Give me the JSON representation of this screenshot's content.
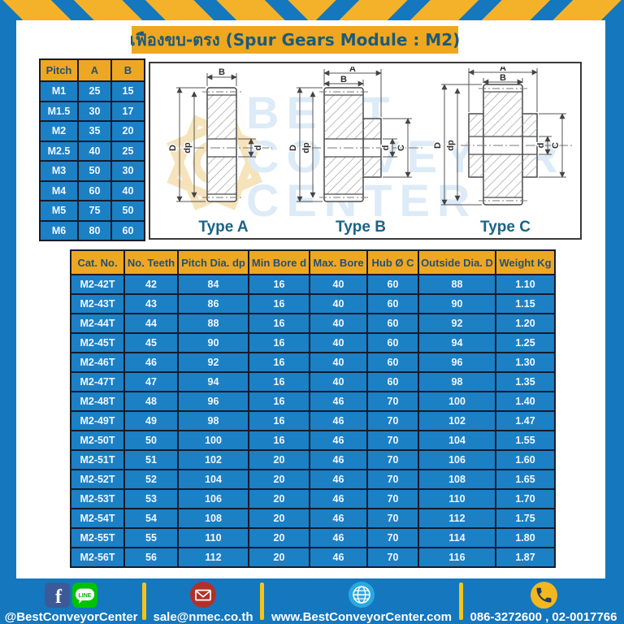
{
  "title": "เฟืองขบ-ตรง (Spur Gears Module : M2)",
  "watermark": {
    "text": "BEST CONVEYOR CENTER",
    "line1": "BEST",
    "line2": "CONVEYOR",
    "line3": "CENTER"
  },
  "pitch_table": {
    "headers": [
      "Pitch",
      "A",
      "B"
    ],
    "rows": [
      [
        "M1",
        "25",
        "15"
      ],
      [
        "M1.5",
        "30",
        "17"
      ],
      [
        "M2",
        "35",
        "20"
      ],
      [
        "M2.5",
        "40",
        "25"
      ],
      [
        "M3",
        "50",
        "30"
      ],
      [
        "M4",
        "60",
        "40"
      ],
      [
        "M5",
        "75",
        "50"
      ],
      [
        "M6",
        "80",
        "60"
      ]
    ]
  },
  "diagrams": {
    "type_a": {
      "label": "Type A",
      "dim_b": "B",
      "dim_D": "D",
      "dim_dp": "dp",
      "dim_d": "d"
    },
    "type_b": {
      "label": "Type B",
      "dim_a": "A",
      "dim_b": "B",
      "dim_D": "D",
      "dim_dp": "dp",
      "dim_d": "d",
      "dim_c": "C"
    },
    "type_c": {
      "label": "Type C",
      "dim_a": "A",
      "dim_b": "B",
      "dim_D": "D",
      "dim_dp": "dp",
      "dim_d": "d",
      "dim_c": "C"
    }
  },
  "spec_table": {
    "headers": [
      "Cat. No.",
      "No. Teeth",
      "Pitch Dia. dp",
      "Min Bore d",
      "Max. Bore",
      "Hub Ø C",
      "Outside Dia. D",
      "Weight Kg"
    ],
    "rows": [
      [
        "M2-42T",
        "42",
        "84",
        "16",
        "40",
        "60",
        "88",
        "1.10"
      ],
      [
        "M2-43T",
        "43",
        "86",
        "16",
        "40",
        "60",
        "90",
        "1.15"
      ],
      [
        "M2-44T",
        "44",
        "88",
        "16",
        "40",
        "60",
        "92",
        "1.20"
      ],
      [
        "M2-45T",
        "45",
        "90",
        "16",
        "40",
        "60",
        "94",
        "1.25"
      ],
      [
        "M2-46T",
        "46",
        "92",
        "16",
        "40",
        "60",
        "96",
        "1.30"
      ],
      [
        "M2-47T",
        "47",
        "94",
        "16",
        "40",
        "60",
        "98",
        "1.35"
      ],
      [
        "M2-48T",
        "48",
        "96",
        "16",
        "46",
        "70",
        "100",
        "1.40"
      ],
      [
        "M2-49T",
        "49",
        "98",
        "16",
        "46",
        "70",
        "102",
        "1.47"
      ],
      [
        "M2-50T",
        "50",
        "100",
        "16",
        "46",
        "70",
        "104",
        "1.55"
      ],
      [
        "M2-51T",
        "51",
        "102",
        "20",
        "46",
        "70",
        "106",
        "1.60"
      ],
      [
        "M2-52T",
        "52",
        "104",
        "20",
        "46",
        "70",
        "108",
        "1.65"
      ],
      [
        "M2-53T",
        "53",
        "106",
        "20",
        "46",
        "70",
        "110",
        "1.70"
      ],
      [
        "M2-54T",
        "54",
        "108",
        "20",
        "46",
        "70",
        "112",
        "1.75"
      ],
      [
        "M2-55T",
        "55",
        "110",
        "20",
        "46",
        "70",
        "114",
        "1.80"
      ],
      [
        "M2-56T",
        "56",
        "112",
        "20",
        "46",
        "70",
        "116",
        "1.87"
      ]
    ]
  },
  "footer": {
    "facebook_letter": "f",
    "line_badge": "LINE",
    "social_label": "@BestConveyorCenter",
    "email": "sale@nmec.co.th",
    "website": "www.BestConveyorCenter.com",
    "phone": "086-3272600 , 02-0017766"
  },
  "colors": {
    "frame_blue": "#1577bd",
    "cell_blue": "#1c80c5",
    "header_yellow": "#eea723",
    "stripe_yellow": "#f3b229",
    "divider_yellow": "#f5c417",
    "title_text": "#1e5a78",
    "border_dark": "#161b2c"
  }
}
